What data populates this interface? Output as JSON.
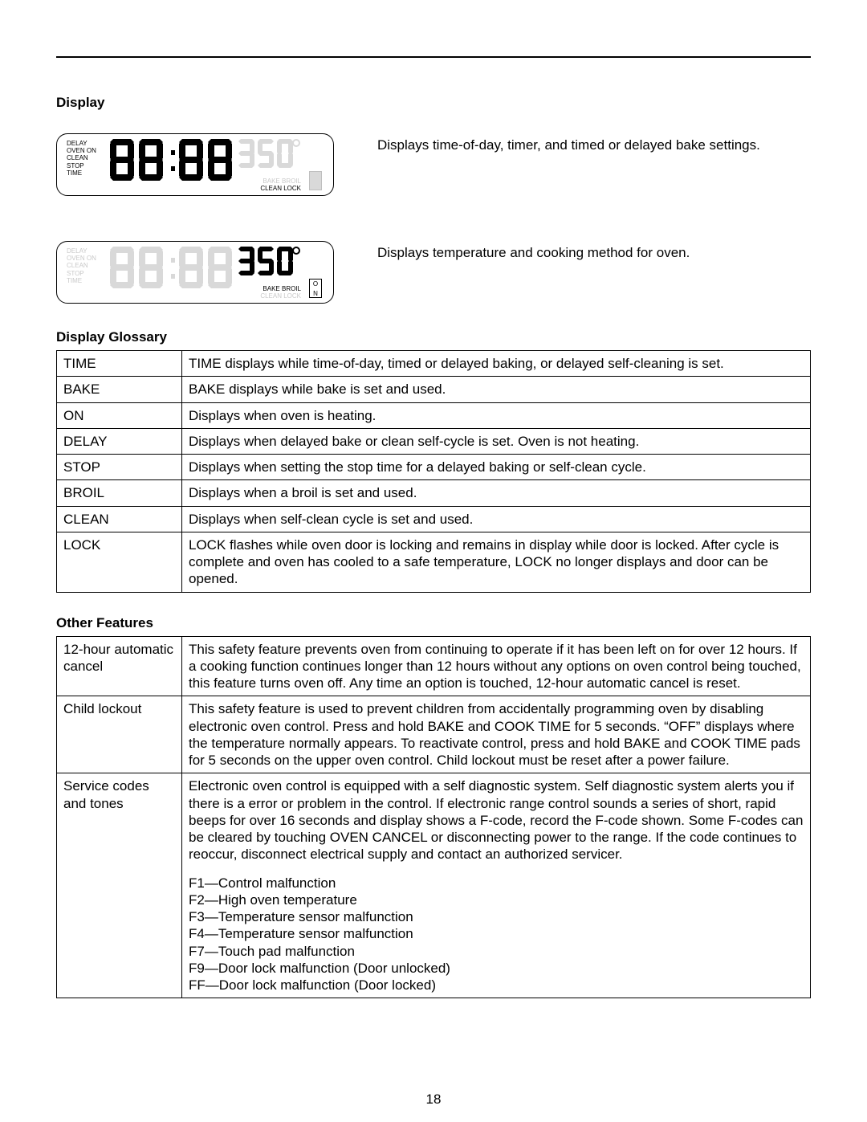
{
  "page_number": "18",
  "headings": {
    "display": "Display",
    "glossary": "Display Glossary",
    "other": "Other Features"
  },
  "display_panels": {
    "panel1_desc": "Displays time-of-day, timer, and timed or delayed bake settings.",
    "panel2_desc": "Displays temperature and cooking method for oven.",
    "left_labels": [
      "DELAY",
      "OVEN ON",
      "CLEAN",
      "STOP",
      "TIME"
    ],
    "right_top": "BAKE  BROIL",
    "right_bottom": "CLEAN LOCK",
    "temp_value": "350",
    "on_box_o": "O",
    "on_box_n": "N"
  },
  "glossary_rows": [
    {
      "term": "TIME",
      "desc": "TIME displays while time-of-day, timed or delayed baking, or delayed self-cleaning is set."
    },
    {
      "term": "BAKE",
      "desc": "BAKE displays while bake is set and used."
    },
    {
      "term": "ON",
      "desc": "Displays when oven is heating."
    },
    {
      "term": "DELAY",
      "desc": "Displays when delayed bake or clean self-cycle is set. Oven is not heating."
    },
    {
      "term": "STOP",
      "desc": "Displays when setting the stop time for a delayed baking or self-clean cycle."
    },
    {
      "term": "BROIL",
      "desc": "Displays when a broil is set and used."
    },
    {
      "term": "CLEAN",
      "desc": "Displays when self-clean cycle is set and used."
    },
    {
      "term": "LOCK",
      "desc": "LOCK flashes while oven door is locking and remains in display while door is locked. After cycle is complete and oven has cooled to a safe temperature, LOCK no longer displays and door can be opened."
    }
  ],
  "features_rows": [
    {
      "term": "12-hour automatic cancel",
      "desc": "This safety feature prevents oven from continuing to operate if it has been left on for over 12 hours. If a cooking function continues longer than 12 hours without any options on oven control being touched, this feature turns oven off. Any time an option is touched, 12-hour automatic cancel is reset."
    },
    {
      "term": "Child lockout",
      "desc": "This safety feature is used to prevent children from accidentally programming oven by disabling electronic oven control. Press and hold BAKE and COOK TIME for 5 seconds. “OFF” displays where the temperature normally appears. To reactivate control, press and hold BAKE and COOK TIME pads for 5 seconds on the upper oven control. Child lockout must be reset after a power failure."
    },
    {
      "term": "Service codes and tones",
      "desc": "Electronic oven control is equipped with a self diagnostic system. Self diagnostic system alerts you if there is a error or problem in the control. If electronic range control sounds a series of short, rapid beeps for over 16 seconds and display shows a F-code, record the F-code shown. Some F-codes can be cleared by touching OVEN CANCEL or disconnecting power to the range. If the code continues to reoccur, disconnect electrical supply and contact an authorized servicer.",
      "codes": [
        "F1—Control malfunction",
        "F2—High oven temperature",
        "F3—Temperature sensor malfunction",
        "F4—Temperature sensor malfunction",
        "F7—Touch pad malfunction",
        "F9—Door lock malfunction (Door unlocked)",
        "FF—Door lock malfunction (Door locked)"
      ]
    }
  ],
  "colors": {
    "text": "#000000",
    "dim": "#c9c9c9",
    "border": "#000000",
    "bg": "#ffffff"
  }
}
